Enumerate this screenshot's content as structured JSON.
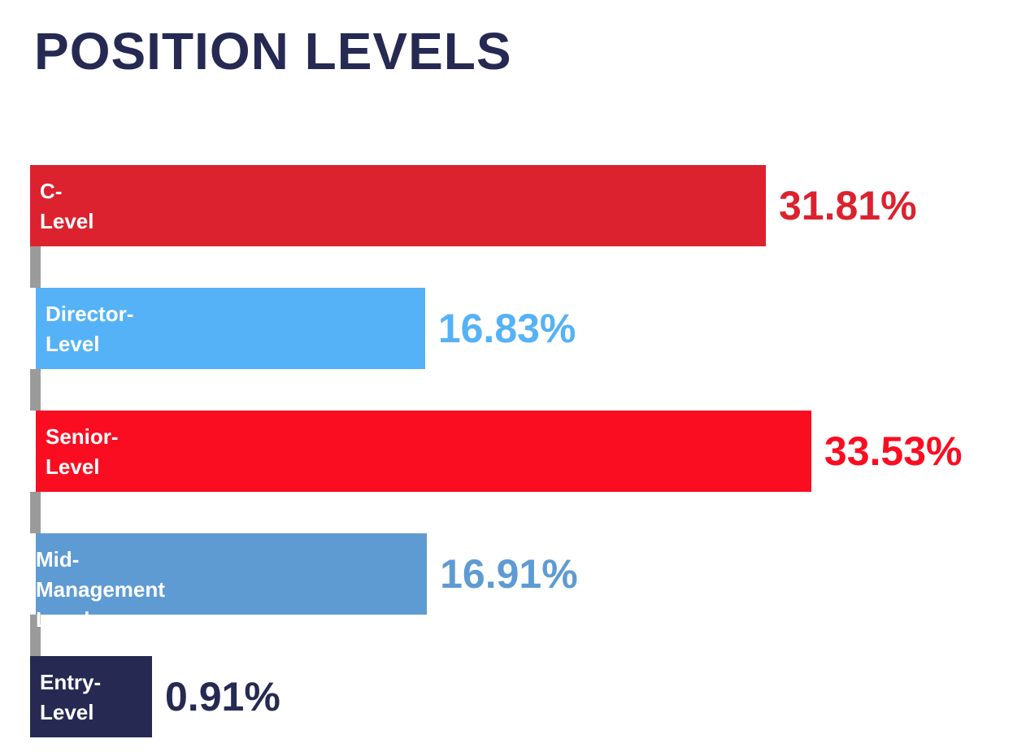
{
  "title": "POSITION LEVELS",
  "chart_data": {
    "type": "bar",
    "orientation": "horizontal",
    "title": "POSITION LEVELS",
    "categories": [
      "C-\nLevel",
      "Director-\nLevel",
      "Senior-\nLevel",
      "Mid-Management\nLevel",
      "Entry-\nLevel"
    ],
    "values": [
      31.81,
      16.83,
      33.53,
      16.91,
      0.91
    ],
    "value_labels": [
      "31.81%",
      "16.83%",
      "33.53%",
      "16.91%",
      "0.91%"
    ],
    "colors": [
      "#dc222e",
      "#55b2f6",
      "#fb0d21",
      "#5e9bd3",
      "#262a52"
    ],
    "xlim": [
      0,
      35
    ],
    "grid": false,
    "legend": "none"
  }
}
